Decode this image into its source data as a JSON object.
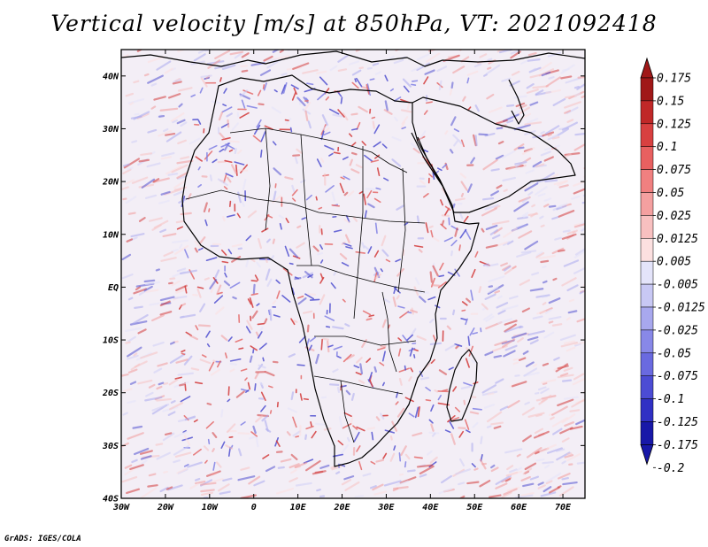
{
  "title": "Vertical velocity [m/s] at 850hPa, VT: 2021092418",
  "credit": "GrADS: IGES/COLA",
  "map": {
    "region": "Africa",
    "lon_range": [
      -30,
      75
    ],
    "lat_range": [
      -40,
      45
    ],
    "lat_ticks": [
      "40N",
      "30N",
      "20N",
      "10N",
      "EQ",
      "10S",
      "20S",
      "30S",
      "40S"
    ],
    "lat_tick_values": [
      40,
      30,
      20,
      10,
      0,
      -10,
      -20,
      -30,
      -40
    ],
    "lon_ticks": [
      "30W",
      "20W",
      "10W",
      "0",
      "10E",
      "20E",
      "30E",
      "40E",
      "50E",
      "60E",
      "70E"
    ],
    "lon_tick_values": [
      -30,
      -20,
      -10,
      0,
      10,
      20,
      30,
      40,
      50,
      60,
      70
    ]
  },
  "colorbar": {
    "labels": [
      "0.175",
      "0.15",
      "0.125",
      "0.1",
      "0.075",
      "0.05",
      "0.025",
      "0.0125",
      "0.005",
      "-0.005",
      "-0.0125",
      "-0.025",
      "-0.05",
      "-0.075",
      "-0.1",
      "-0.125",
      "-0.175",
      "-0.2"
    ],
    "colors": [
      "#a01818",
      "#c02828",
      "#d84040",
      "#e86060",
      "#f08080",
      "#f4a0a0",
      "#f8c0c0",
      "#fce0e0",
      "#ffffff",
      "#e4e4fa",
      "#c8c8f4",
      "#a8a8ee",
      "#8888e8",
      "#6a6ae0",
      "#4c4cd4",
      "#3030c4",
      "#1818a8"
    ]
  }
}
